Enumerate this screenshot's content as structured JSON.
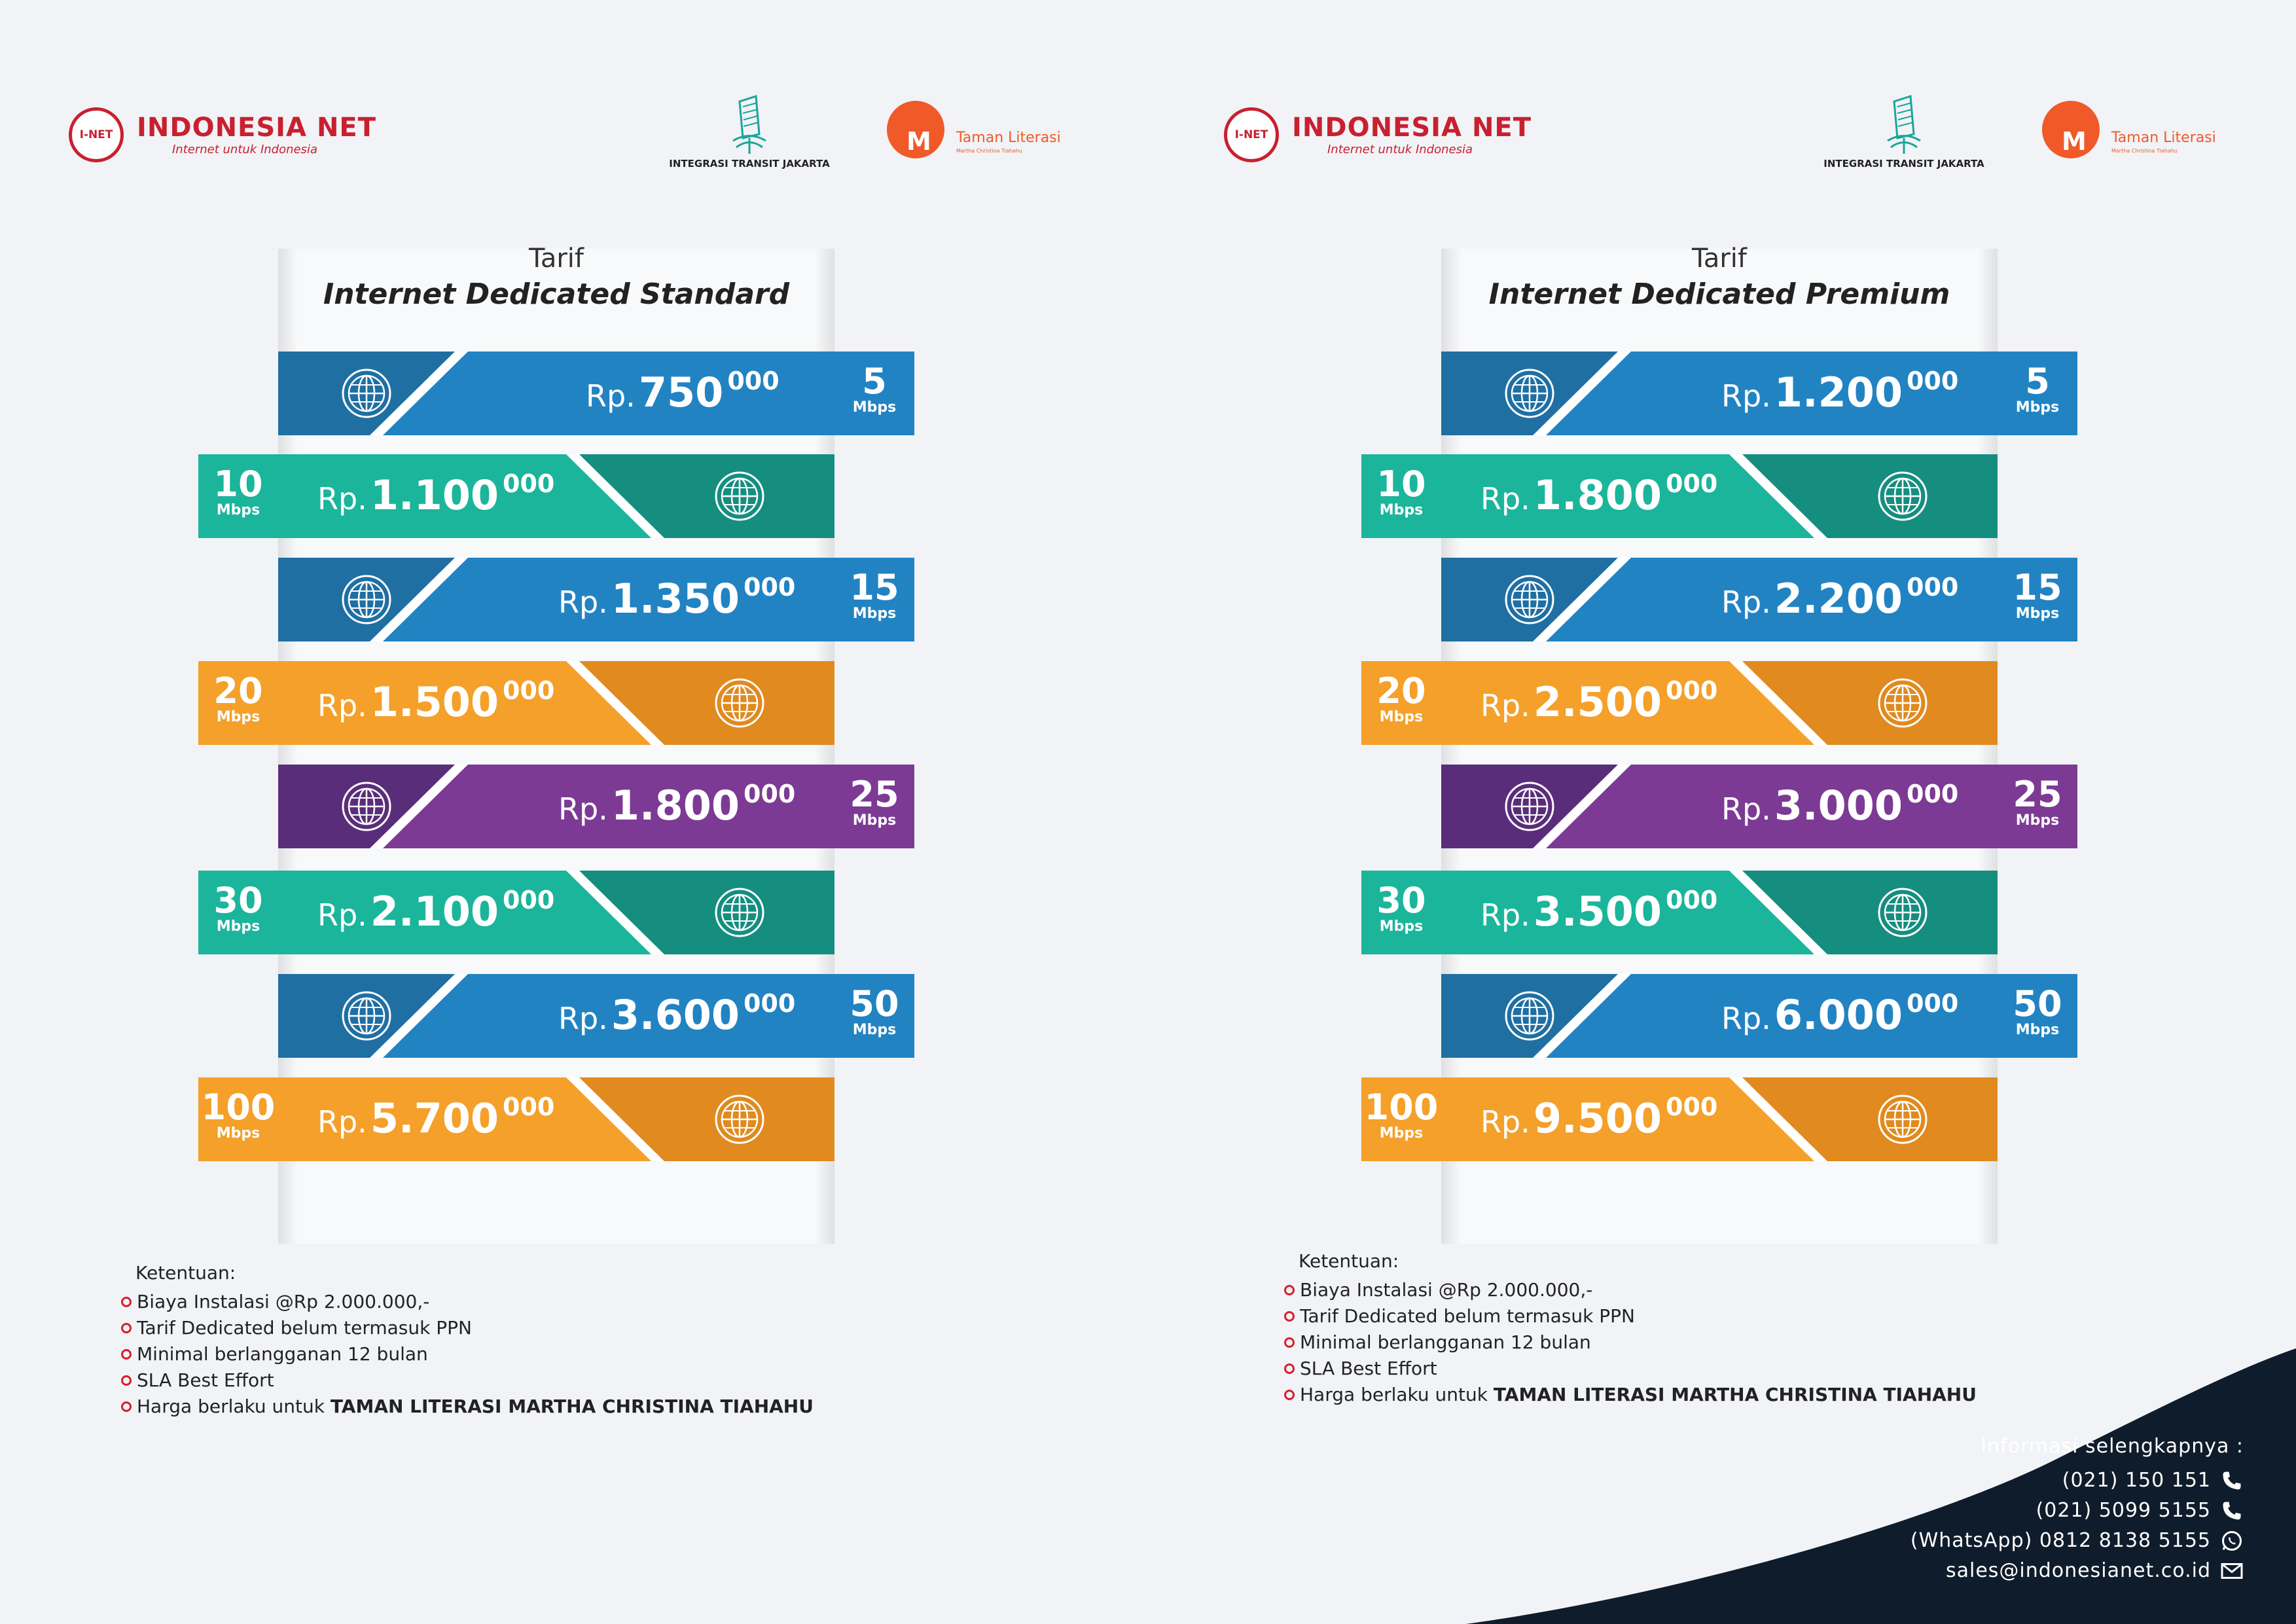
{
  "brand": {
    "inet_badge": "I-NET",
    "inet_name": "INDONESIA NET",
    "inet_tagline": "Internet untuk Indonesia",
    "itj_name": "INTEGRASI TRANSIT JAKARTA",
    "tl_name": "Taman Literasi",
    "tl_sub": "Martha Christina Tiahahu"
  },
  "colors": {
    "blue_dark": "#1f6fa3",
    "blue_light": "#2283c3",
    "teal_dark": "#158e80",
    "teal_light": "#1bb59b",
    "orange_dark": "#e08a1f",
    "orange_light": "#f4a02a",
    "purple_dark": "#5a2d7a",
    "purple_light": "#7c3a94",
    "red": "#c8202f",
    "navy": "#0f1c2b"
  },
  "unit": "Mbps",
  "price_prefix": "Rp.",
  "price_suffix": "000",
  "standard": {
    "tarif": "Tarif",
    "title": "Internet Dedicated Standard",
    "rows": [
      {
        "speed": "5",
        "price": "750",
        "color": "blue"
      },
      {
        "speed": "10",
        "price": "1.100",
        "color": "teal"
      },
      {
        "speed": "15",
        "price": "1.350",
        "color": "blue"
      },
      {
        "speed": "20",
        "price": "1.500",
        "color": "orange"
      },
      {
        "speed": "25",
        "price": "1.800",
        "color": "purple"
      },
      {
        "speed": "30",
        "price": "2.100",
        "color": "teal"
      },
      {
        "speed": "50",
        "price": "3.600",
        "color": "blue"
      },
      {
        "speed": "100",
        "price": "5.700",
        "color": "orange"
      }
    ]
  },
  "premium": {
    "tarif": "Tarif",
    "title": "Internet Dedicated Premium",
    "rows": [
      {
        "speed": "5",
        "price": "1.200",
        "color": "blue"
      },
      {
        "speed": "10",
        "price": "1.800",
        "color": "teal"
      },
      {
        "speed": "15",
        "price": "2.200",
        "color": "blue"
      },
      {
        "speed": "20",
        "price": "2.500",
        "color": "orange"
      },
      {
        "speed": "25",
        "price": "3.000",
        "color": "purple"
      },
      {
        "speed": "30",
        "price": "3.500",
        "color": "teal"
      },
      {
        "speed": "50",
        "price": "6.000",
        "color": "blue"
      },
      {
        "speed": "100",
        "price": "9.500",
        "color": "orange"
      }
    ]
  },
  "terms": {
    "heading": "Ketentuan:",
    "items": [
      "Biaya Instalasi @Rp 2.000.000,-",
      "Tarif Dedicated belum termasuk PPN",
      "Minimal berlangganan 12 bulan",
      "SLA Best Effort"
    ],
    "last_prefix": "Harga berlaku untuk ",
    "last_bold": "TAMAN LITERASI MARTHA CHRISTINA TIAHAHU"
  },
  "contact": {
    "heading": "Informasi selengkapnya :",
    "phone1": "(021) 150 151",
    "phone2": "(021) 5099 5155",
    "whatsapp": "(WhatsApp) 0812 8138 5155",
    "email": "sales@indonesianet.co.id"
  }
}
